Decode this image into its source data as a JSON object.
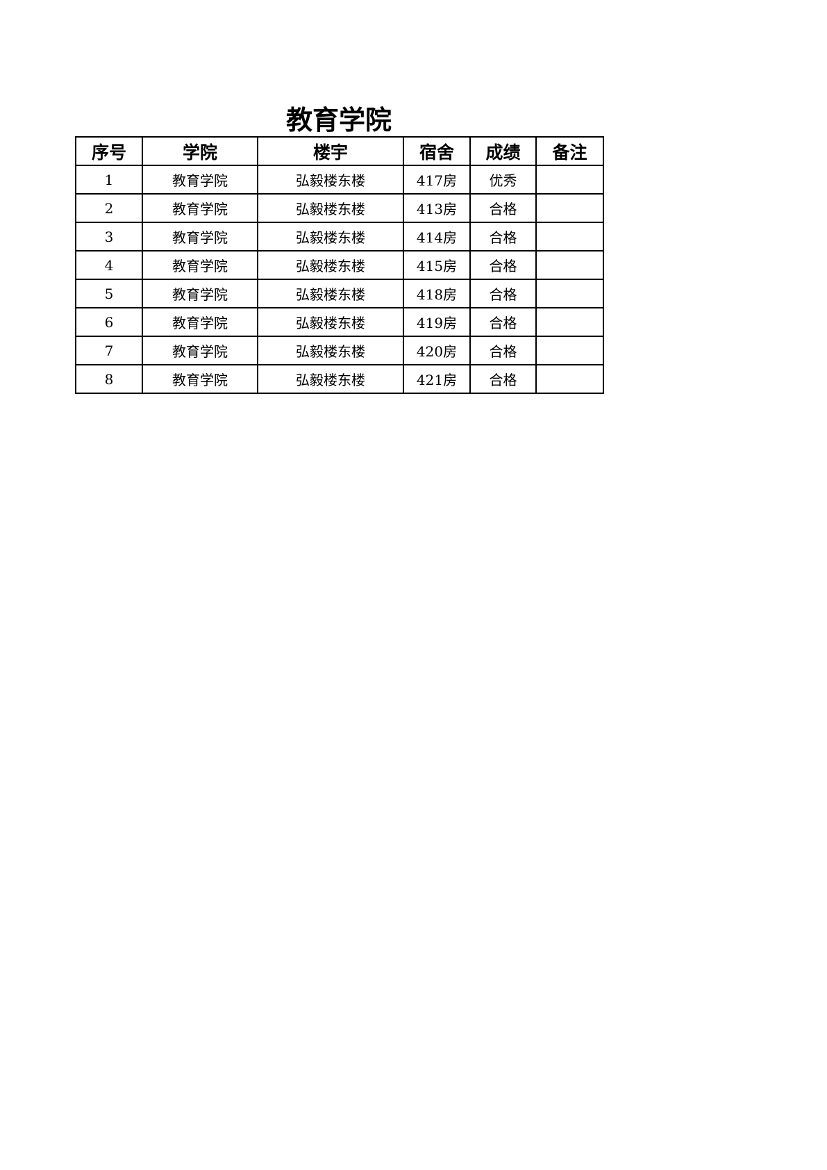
{
  "title": "教育学院",
  "table": {
    "headers": [
      "序号",
      "学院",
      "楼宇",
      "宿舍",
      "成绩",
      "备注"
    ],
    "rows": [
      [
        "1",
        "教育学院",
        "弘毅楼东楼",
        "417房",
        "优秀",
        ""
      ],
      [
        "2",
        "教育学院",
        "弘毅楼东楼",
        "413房",
        "合格",
        ""
      ],
      [
        "3",
        "教育学院",
        "弘毅楼东楼",
        "414房",
        "合格",
        ""
      ],
      [
        "4",
        "教育学院",
        "弘毅楼东楼",
        "415房",
        "合格",
        ""
      ],
      [
        "5",
        "教育学院",
        "弘毅楼东楼",
        "418房",
        "合格",
        ""
      ],
      [
        "6",
        "教育学院",
        "弘毅楼东楼",
        "419房",
        "合格",
        ""
      ],
      [
        "7",
        "教育学院",
        "弘毅楼东楼",
        "420房",
        "合格",
        ""
      ],
      [
        "8",
        "教育学院",
        "弘毅楼东楼",
        "421房",
        "合格",
        ""
      ]
    ]
  }
}
